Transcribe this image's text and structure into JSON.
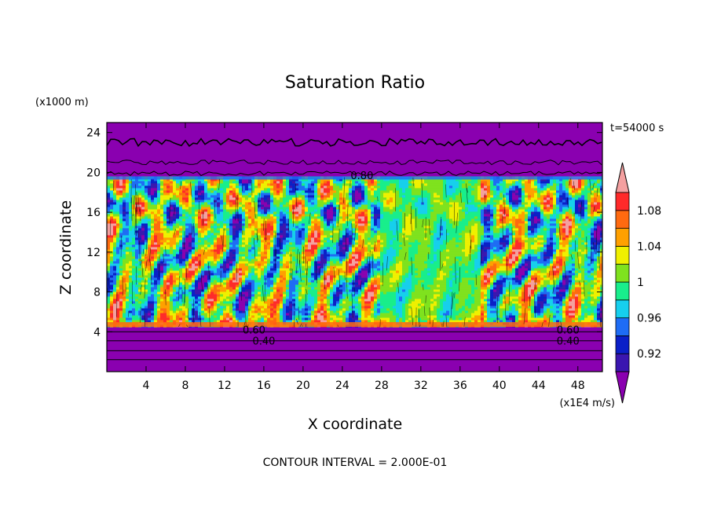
{
  "chart_data": {
    "type": "heatmap",
    "title": "Saturation Ratio",
    "xlabel": "X coordinate",
    "ylabel": "Z coordinate",
    "x_units": "(x1E4 m/s)",
    "y_units": "(x1000 m)",
    "time_label": "t=54000 s",
    "footer": "CONTOUR INTERVAL = 2.000E-01",
    "xlim": [
      0,
      50.5
    ],
    "ylim": [
      0,
      25
    ],
    "x_ticks": [
      "4",
      "8",
      "12",
      "16",
      "20",
      "24",
      "28",
      "32",
      "36",
      "40",
      "44",
      "48"
    ],
    "y_ticks": [
      "4",
      "8",
      "12",
      "16",
      "20",
      "24"
    ],
    "contour_labels": [
      {
        "text": "0.60",
        "x": 15,
        "y": 4.2
      },
      {
        "text": "0.40",
        "x": 16,
        "y": 3.1
      },
      {
        "text": "0.60",
        "x": 47,
        "y": 4.2
      },
      {
        "text": "0.40",
        "x": 47,
        "y": 3.1
      },
      {
        "text": "0.80",
        "x": 26,
        "y": 19.7
      }
    ],
    "colorbar": {
      "labels": [
        "1.08",
        "1.04",
        "1",
        "0.96",
        "0.92"
      ],
      "levels": [
        0.9,
        0.92,
        0.94,
        0.96,
        0.98,
        1.0,
        1.02,
        1.04,
        1.06,
        1.08,
        1.1
      ],
      "colors": [
        "#8a00b0",
        "#3a16b0",
        "#0a1fc8",
        "#1e6cf5",
        "#16cfee",
        "#18ee8c",
        "#7fe21e",
        "#f0f000",
        "#ffa000",
        "#ff6a10",
        "#ff2a2a",
        "#f4a0a0"
      ]
    },
    "layers": [
      {
        "name": "upper dry layer",
        "z_range": [
          19.6,
          25
        ],
        "value_below": 0.9
      },
      {
        "name": "cloud layer",
        "z_range": [
          4.5,
          19.6
        ],
        "value_range": [
          0.92,
          1.1
        ]
      },
      {
        "name": "lower dry layer",
        "z_range": [
          0,
          4.5
        ],
        "value_below": 0.9
      }
    ]
  }
}
